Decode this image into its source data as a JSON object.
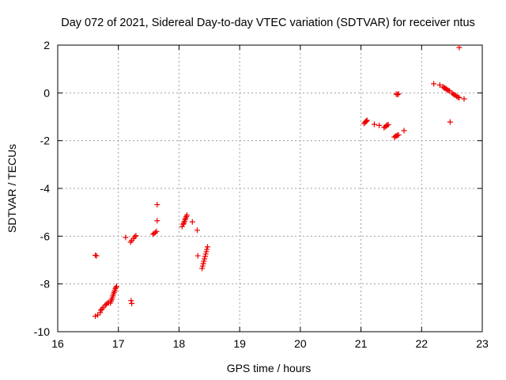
{
  "chart_data": {
    "type": "scatter",
    "title": "Day 072 of 2021, Sidereal Day-to-day VTEC variation (SDTVAR) for receiver ntus",
    "xlabel": "GPS time / hours",
    "ylabel": "SDTVAR / TECUs",
    "xlim": [
      16,
      23
    ],
    "ylim": [
      -10,
      2
    ],
    "xticks": [
      16,
      17,
      18,
      19,
      20,
      21,
      22,
      23
    ],
    "yticks": [
      -10,
      -8,
      -6,
      -4,
      -2,
      0,
      2
    ],
    "xtick_labels": [
      "16",
      "17",
      "18",
      "19",
      "20",
      "21",
      "22",
      "23"
    ],
    "ytick_labels": [
      "-10",
      "-8",
      "-6",
      "-4",
      "-2",
      "0",
      "2"
    ],
    "grid": true,
    "marker": "+",
    "color": "#ee0000",
    "series": [
      {
        "name": "ntus",
        "points": [
          [
            16.62,
            -6.8
          ],
          [
            16.64,
            -6.82
          ],
          [
            16.62,
            -9.35
          ],
          [
            16.66,
            -9.3
          ],
          [
            16.7,
            -9.2
          ],
          [
            16.71,
            -9.1
          ],
          [
            16.73,
            -9.05
          ],
          [
            16.75,
            -8.98
          ],
          [
            16.78,
            -8.9
          ],
          [
            16.8,
            -8.85
          ],
          [
            16.82,
            -8.8
          ],
          [
            16.84,
            -8.78
          ],
          [
            16.87,
            -8.8
          ],
          [
            16.88,
            -8.72
          ],
          [
            16.89,
            -8.65
          ],
          [
            16.9,
            -8.58
          ],
          [
            16.91,
            -8.5
          ],
          [
            16.92,
            -8.42
          ],
          [
            16.93,
            -8.35
          ],
          [
            16.94,
            -8.28
          ],
          [
            16.95,
            -8.2
          ],
          [
            16.96,
            -8.15
          ],
          [
            16.97,
            -8.1
          ],
          [
            17.12,
            -6.05
          ],
          [
            17.2,
            -6.25
          ],
          [
            17.22,
            -6.18
          ],
          [
            17.25,
            -6.1
          ],
          [
            17.27,
            -6.02
          ],
          [
            17.29,
            -5.98
          ],
          [
            17.21,
            -8.7
          ],
          [
            17.22,
            -8.82
          ],
          [
            17.57,
            -5.92
          ],
          [
            17.59,
            -5.88
          ],
          [
            17.61,
            -5.85
          ],
          [
            17.63,
            -5.8
          ],
          [
            17.64,
            -5.35
          ],
          [
            17.64,
            -4.68
          ],
          [
            18.05,
            -5.6
          ],
          [
            18.07,
            -5.5
          ],
          [
            18.08,
            -5.45
          ],
          [
            18.09,
            -5.38
          ],
          [
            18.1,
            -5.3
          ],
          [
            18.11,
            -5.25
          ],
          [
            18.12,
            -5.18
          ],
          [
            18.13,
            -5.12
          ],
          [
            18.22,
            -5.4
          ],
          [
            18.3,
            -5.75
          ],
          [
            18.31,
            -6.82
          ],
          [
            18.38,
            -7.35
          ],
          [
            18.39,
            -7.25
          ],
          [
            18.4,
            -7.15
          ],
          [
            18.41,
            -7.05
          ],
          [
            18.42,
            -6.95
          ],
          [
            18.43,
            -6.85
          ],
          [
            18.44,
            -6.75
          ],
          [
            18.45,
            -6.65
          ],
          [
            18.46,
            -6.55
          ],
          [
            18.47,
            -6.45
          ],
          [
            21.05,
            -1.28
          ],
          [
            21.07,
            -1.24
          ],
          [
            21.08,
            -1.2
          ],
          [
            21.09,
            -1.18
          ],
          [
            21.1,
            -1.15
          ],
          [
            21.22,
            -1.32
          ],
          [
            21.3,
            -1.36
          ],
          [
            21.38,
            -1.45
          ],
          [
            21.4,
            -1.42
          ],
          [
            21.42,
            -1.38
          ],
          [
            21.43,
            -1.35
          ],
          [
            21.45,
            -1.33
          ],
          [
            21.55,
            -1.85
          ],
          [
            21.57,
            -1.82
          ],
          [
            21.58,
            -1.8
          ],
          [
            21.6,
            -1.78
          ],
          [
            21.62,
            -1.76
          ],
          [
            21.58,
            -0.05
          ],
          [
            21.6,
            -0.07
          ],
          [
            21.62,
            -0.04
          ],
          [
            21.71,
            -1.58
          ],
          [
            22.2,
            0.38
          ],
          [
            22.3,
            0.33
          ],
          [
            22.35,
            0.25
          ],
          [
            22.37,
            0.22
          ],
          [
            22.38,
            0.2
          ],
          [
            22.4,
            0.18
          ],
          [
            22.41,
            0.15
          ],
          [
            22.43,
            0.12
          ],
          [
            22.44,
            0.1
          ],
          [
            22.46,
            0.08
          ],
          [
            22.47,
            -1.22
          ],
          [
            22.5,
            0.0
          ],
          [
            22.52,
            -0.05
          ],
          [
            22.54,
            -0.08
          ],
          [
            22.56,
            -0.1
          ],
          [
            22.58,
            -0.15
          ],
          [
            22.6,
            -0.18
          ],
          [
            22.62,
            -0.2
          ],
          [
            22.62,
            1.9
          ],
          [
            22.7,
            -0.25
          ]
        ]
      }
    ]
  }
}
